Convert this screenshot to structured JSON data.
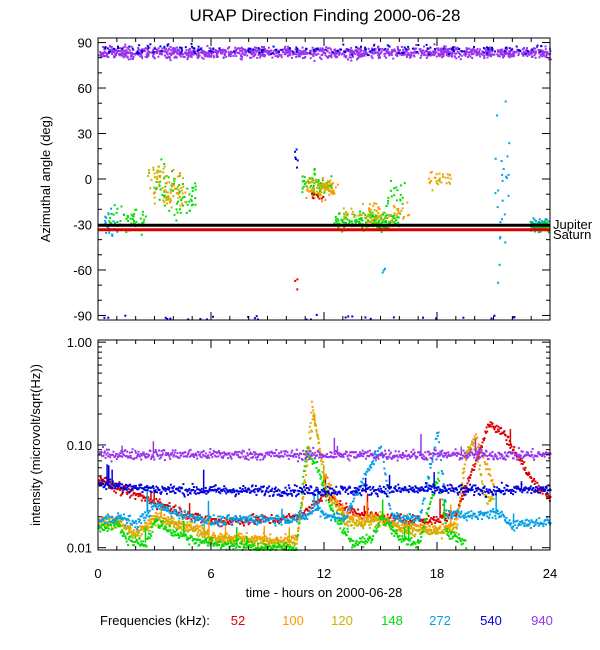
{
  "chart_data": [
    {
      "type": "scatter",
      "title": "URAP Direction Finding  2000-06-28",
      "ylabel": "Azimuthal angle (deg)",
      "xlim": [
        0,
        24
      ],
      "ylim": [
        -93,
        93
      ],
      "yticks": [
        90,
        60,
        30,
        0,
        -30,
        -60,
        -90
      ],
      "ytick_labels": [
        "90",
        "60",
        "30",
        "0",
        "-30",
        "-60",
        "-90"
      ],
      "reference_lines": [
        {
          "name": "Jupiter",
          "value": -30.5,
          "color": "#000000"
        },
        {
          "name": "Saturn",
          "value": -33.5,
          "color": "#dd0000"
        }
      ],
      "series": [
        {
          "name": "940",
          "color": "#9933ee",
          "clusters": [
            [
              0,
              24,
              84,
              3,
              1300
            ]
          ]
        },
        {
          "name": "540",
          "color": "#0000dd",
          "clusters": [
            [
              0,
              24,
              86,
              3,
              150
            ],
            [
              0,
              24,
              -91,
              1.5,
              30
            ],
            [
              10.4,
              10.6,
              12,
              10,
              6
            ]
          ]
        },
        {
          "name": "272",
          "color": "#00a0e8",
          "clusters": [
            [
              0.3,
              1,
              -30,
              8,
              25
            ],
            [
              21,
              21.8,
              -10,
              55,
              25
            ],
            [
              15,
              15.2,
              -60,
              2,
              3
            ],
            [
              22.9,
              23.9,
              -29,
              4,
              70
            ]
          ]
        },
        {
          "name": "148",
          "color": "#00dd00",
          "clusters": [
            [
              0.5,
              2.5,
              -26,
              7,
              50
            ],
            [
              2.9,
              4,
              -4,
              12,
              30
            ],
            [
              4,
              5.2,
              -12,
              10,
              40
            ],
            [
              10.8,
              12.4,
              -3,
              6,
              70
            ],
            [
              12.5,
              16,
              -27,
              5,
              160
            ],
            [
              15,
              16.3,
              -8,
              10,
              20
            ],
            [
              22.9,
              23.9,
              -31,
              3,
              60
            ]
          ]
        },
        {
          "name": "120",
          "color": "#c8b400",
          "clusters": [
            [
              2.6,
              3.5,
              4,
              6,
              25
            ],
            [
              3.4,
              4.4,
              -8,
              10,
              30
            ],
            [
              11,
              12.5,
              -5,
              6,
              50
            ],
            [
              13,
              15,
              -24,
              5,
              40
            ],
            [
              17.7,
              18.7,
              0,
              5,
              15
            ]
          ]
        },
        {
          "name": "100",
          "color": "#ff9900",
          "clusters": [
            [
              2.8,
              4.6,
              -7,
              10,
              35
            ],
            [
              11,
              12.7,
              -6,
              6,
              40
            ],
            [
              14.3,
              16.5,
              -22,
              6,
              40
            ],
            [
              17.5,
              18.8,
              1,
              4,
              15
            ]
          ]
        },
        {
          "name": "52",
          "color": "#dd0000",
          "clusters": [
            [
              11.3,
              12,
              -10,
              4,
              10
            ],
            [
              10.4,
              10.6,
              -70,
              5,
              3
            ]
          ]
        }
      ]
    },
    {
      "type": "line",
      "xlabel": "time - hours on 2000-06-28",
      "ylabel": "intensity (microvolt/sqrt(Hz))",
      "yscale": "log",
      "xlim": [
        0,
        24
      ],
      "ylim": [
        0.0095,
        1.05
      ],
      "xticks": [
        0,
        6,
        12,
        18,
        24
      ],
      "xtick_labels": [
        "0",
        "6",
        "12",
        "18",
        "24"
      ],
      "yticks": [
        1.0,
        0.1,
        0.01
      ],
      "ytick_labels": [
        "1.00",
        "0.10",
        "0.01"
      ],
      "series": [
        {
          "name": "52",
          "color": "#dd0000",
          "baseline": 0.045,
          "x_end": 24,
          "knots": [
            [
              0,
              0.05
            ],
            [
              0.6,
              0.04
            ],
            [
              1.5,
              0.035
            ],
            [
              3,
              0.028
            ],
            [
              5,
              0.02
            ],
            [
              6,
              0.018
            ],
            [
              10,
              0.019
            ],
            [
              11,
              0.022
            ],
            [
              12,
              0.034
            ],
            [
              13,
              0.024
            ],
            [
              15,
              0.019
            ],
            [
              17,
              0.018
            ],
            [
              18,
              0.019
            ],
            [
              19,
              0.022
            ],
            [
              20,
              0.07
            ],
            [
              20.7,
              0.16
            ],
            [
              21.5,
              0.13
            ],
            [
              23,
              0.045
            ],
            [
              24,
              0.03
            ]
          ]
        },
        {
          "name": "100",
          "color": "#ff9900",
          "baseline": 0.02,
          "x_end": 21,
          "knots": [
            [
              0,
              0.019
            ],
            [
              1,
              0.018
            ],
            [
              2,
              0.014
            ],
            [
              3,
              0.02
            ],
            [
              4,
              0.018
            ],
            [
              5,
              0.016
            ],
            [
              6,
              0.013
            ],
            [
              9,
              0.012
            ],
            [
              10.5,
              0.012
            ],
            [
              11,
              0.05
            ],
            [
              11.3,
              0.25
            ],
            [
              12,
              0.05
            ],
            [
              13,
              0.02
            ],
            [
              14,
              0.018
            ],
            [
              15,
              0.02
            ],
            [
              16,
              0.016
            ],
            [
              18,
              0.015
            ],
            [
              19,
              0.017
            ],
            [
              19.5,
              0.08
            ],
            [
              20,
              0.12
            ],
            [
              21,
              0.04
            ]
          ]
        },
        {
          "name": "120",
          "color": "#c8b400",
          "baseline": 0.02,
          "x_end": 21,
          "knots": [
            [
              0,
              0.018
            ],
            [
              1,
              0.017
            ],
            [
              2,
              0.013
            ],
            [
              3,
              0.018
            ],
            [
              4,
              0.017
            ],
            [
              5,
              0.015
            ],
            [
              6,
              0.012
            ],
            [
              9,
              0.011
            ],
            [
              10.5,
              0.011
            ],
            [
              11,
              0.06
            ],
            [
              11.4,
              0.2
            ],
            [
              12,
              0.04
            ],
            [
              13,
              0.018
            ],
            [
              14,
              0.017
            ],
            [
              15,
              0.019
            ],
            [
              16,
              0.015
            ],
            [
              18,
              0.014
            ],
            [
              19,
              0.016
            ],
            [
              19.5,
              0.09
            ],
            [
              20,
              0.1
            ],
            [
              20.5,
              0.03
            ]
          ]
        },
        {
          "name": "148",
          "color": "#00dd00",
          "baseline": 0.015,
          "x_end": 19.5,
          "knots": [
            [
              0,
              0.015
            ],
            [
              1,
              0.017
            ],
            [
              1.5,
              0.012
            ],
            [
              2.5,
              0.011
            ],
            [
              3,
              0.018
            ],
            [
              4,
              0.014
            ],
            [
              5,
              0.012
            ],
            [
              6,
              0.011
            ],
            [
              9,
              0.01
            ],
            [
              10.5,
              0.01
            ],
            [
              11,
              0.09
            ],
            [
              11.6,
              0.06
            ],
            [
              12.5,
              0.02
            ],
            [
              13.5,
              0.011
            ],
            [
              14.5,
              0.012
            ],
            [
              15,
              0.02
            ],
            [
              16,
              0.012
            ],
            [
              17,
              0.011
            ],
            [
              18,
              0.05
            ],
            [
              18.5,
              0.014
            ],
            [
              19.5,
              0.011
            ]
          ]
        },
        {
          "name": "272",
          "color": "#00a0e8",
          "baseline": 0.02,
          "x_end": 24,
          "knots": [
            [
              0,
              0.018
            ],
            [
              1,
              0.02
            ],
            [
              2,
              0.017
            ],
            [
              3,
              0.026
            ],
            [
              4,
              0.022
            ],
            [
              5,
              0.02
            ],
            [
              6,
              0.018
            ],
            [
              8,
              0.019
            ],
            [
              10,
              0.019
            ],
            [
              11,
              0.02
            ],
            [
              11.5,
              0.025
            ],
            [
              12,
              0.021
            ],
            [
              13,
              0.019
            ],
            [
              15,
              0.1
            ],
            [
              15.5,
              0.02
            ],
            [
              17,
              0.019
            ],
            [
              18,
              0.13
            ],
            [
              18.5,
              0.02
            ],
            [
              19,
              0.022
            ],
            [
              20,
              0.02
            ],
            [
              21,
              0.022
            ],
            [
              22,
              0.017
            ],
            [
              24,
              0.018
            ]
          ]
        },
        {
          "name": "540",
          "color": "#0000dd",
          "baseline": 0.037,
          "x_end": 24,
          "knots": [
            [
              0,
              0.042
            ],
            [
              1,
              0.04
            ],
            [
              3,
              0.037
            ],
            [
              6,
              0.036
            ],
            [
              12,
              0.036
            ],
            [
              18,
              0.037
            ],
            [
              20,
              0.036
            ],
            [
              24,
              0.037
            ]
          ]
        },
        {
          "name": "940",
          "color": "#9933ee",
          "baseline": 0.08,
          "x_end": 24,
          "knots": [
            [
              0,
              0.081
            ],
            [
              12,
              0.08
            ],
            [
              24,
              0.08
            ]
          ]
        }
      ]
    }
  ],
  "jupiter_label": "Jupiter",
  "saturn_label": "Saturn",
  "legend": {
    "title": "Frequencies (kHz):",
    "items": [
      {
        "label": "52",
        "color": "#dd0000"
      },
      {
        "label": "100",
        "color": "#ff9900"
      },
      {
        "label": "120",
        "color": "#c8b400"
      },
      {
        "label": "148",
        "color": "#00dd00"
      },
      {
        "label": "272",
        "color": "#00a0e8"
      },
      {
        "label": "540",
        "color": "#0000dd"
      },
      {
        "label": "940",
        "color": "#9933ee"
      }
    ]
  }
}
